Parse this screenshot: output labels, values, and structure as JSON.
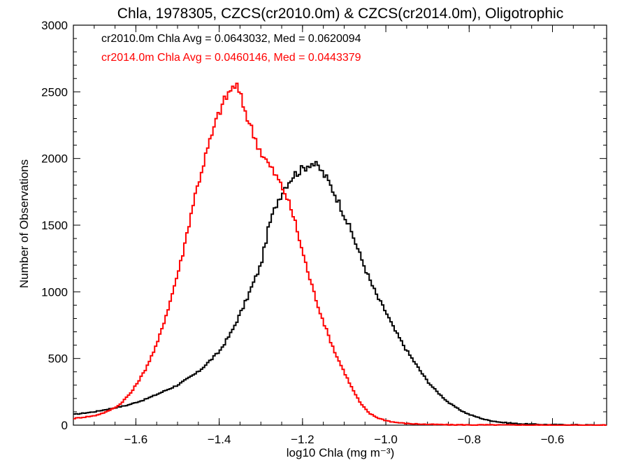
{
  "chart_data": {
    "type": "line",
    "title": "Chla, 1978305, CZCS(cr2010.0m) & CZCS(cr2014.0m), Oligotrophic",
    "xlabel": "log10 Chla (mg m⁻³)",
    "ylabel": "Number of Observations",
    "xlim": [
      -1.75,
      -0.47
    ],
    "ylim": [
      0,
      3000
    ],
    "xticks": [
      -1.6,
      -1.4,
      -1.2,
      -1.0,
      -0.8,
      -0.6
    ],
    "xtick_labels": [
      "−1.6",
      "−1.4",
      "−1.2",
      "−1.0",
      "−0.8",
      "−0.6"
    ],
    "yticks": [
      0,
      500,
      1000,
      1500,
      2000,
      2500,
      3000
    ],
    "ytick_labels": [
      "0",
      "500",
      "1000",
      "1500",
      "2000",
      "2500",
      "3000"
    ],
    "grid": false,
    "series": [
      {
        "name": "cr2010.0m",
        "color": "#000000",
        "legend_text": "cr2010.0m Chla Avg = 0.0643032, Med = 0.0620094",
        "x": [
          -1.75,
          -1.7,
          -1.65,
          -1.62,
          -1.58,
          -1.55,
          -1.5,
          -1.45,
          -1.4,
          -1.37,
          -1.34,
          -1.3,
          -1.28,
          -1.26,
          -1.24,
          -1.22,
          -1.2,
          -1.18,
          -1.16,
          -1.14,
          -1.12,
          -1.1,
          -1.08,
          -1.06,
          -1.04,
          -1.02,
          -1.0,
          -0.98,
          -0.95,
          -0.92,
          -0.9,
          -0.88,
          -0.85,
          -0.82,
          -0.8,
          -0.76,
          -0.72,
          -0.68,
          -0.62,
          -0.55,
          -0.47
        ],
        "y": [
          80,
          100,
          130,
          150,
          190,
          230,
          300,
          400,
          550,
          700,
          900,
          1200,
          1500,
          1680,
          1800,
          1880,
          1920,
          1970,
          1930,
          1840,
          1720,
          1580,
          1430,
          1260,
          1100,
          960,
          850,
          720,
          560,
          420,
          330,
          260,
          170,
          110,
          80,
          40,
          20,
          10,
          4,
          2,
          0
        ]
      },
      {
        "name": "cr2014.0m",
        "color": "#ff0000",
        "legend_text": "cr2014.0m Chla Avg = 0.0460146, Med = 0.0443379",
        "x": [
          -1.75,
          -1.7,
          -1.67,
          -1.64,
          -1.61,
          -1.58,
          -1.55,
          -1.52,
          -1.49,
          -1.46,
          -1.43,
          -1.4,
          -1.38,
          -1.36,
          -1.34,
          -1.32,
          -1.3,
          -1.28,
          -1.26,
          -1.24,
          -1.22,
          -1.2,
          -1.18,
          -1.16,
          -1.14,
          -1.12,
          -1.1,
          -1.08,
          -1.06,
          -1.04,
          -1.02,
          -1.0,
          -0.98,
          -0.95,
          -0.9,
          -0.85,
          -0.8,
          -0.7,
          -0.6,
          -0.47
        ],
        "y": [
          50,
          70,
          100,
          150,
          250,
          400,
          600,
          900,
          1250,
          1700,
          2050,
          2350,
          2480,
          2560,
          2380,
          2200,
          2050,
          1950,
          1850,
          1730,
          1550,
          1300,
          1070,
          870,
          690,
          530,
          400,
          270,
          160,
          90,
          55,
          35,
          22,
          12,
          6,
          3,
          2,
          1,
          0,
          0
        ]
      }
    ],
    "legend_position": "top-left"
  }
}
